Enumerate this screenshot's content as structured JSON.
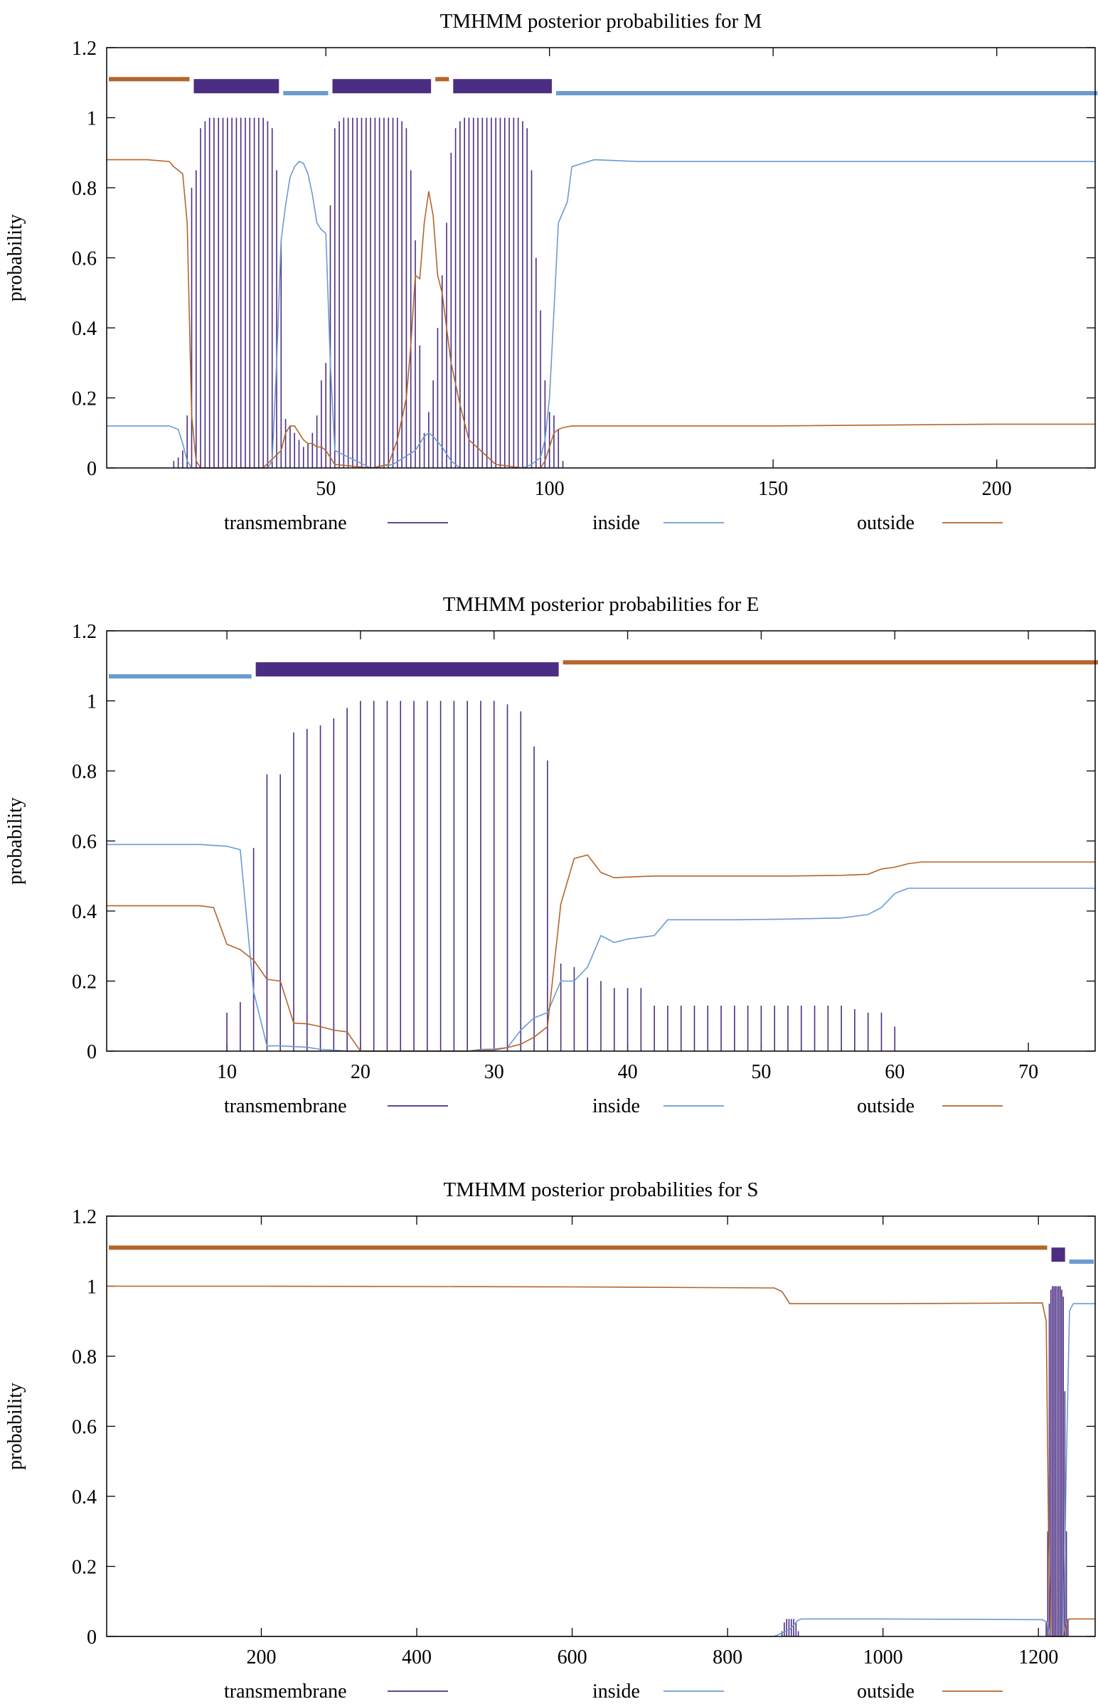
{
  "colors": {
    "transmembrane": "#4b2e83",
    "inside": "#6b9bd1",
    "outside": "#b5652a",
    "axis": "#000000"
  },
  "chart_data": [
    {
      "type": "line",
      "title": "TMHMM posterior probabilities for M",
      "xlabel": "",
      "ylabel": "probability",
      "xlim": [
        1,
        222
      ],
      "ylim": [
        0,
        1.2
      ],
      "xticks": [
        50,
        100,
        150,
        200
      ],
      "yticks": [
        0,
        0.2,
        0.4,
        0.6,
        0.8,
        1,
        1.2
      ],
      "legend": [
        "transmembrane",
        "inside",
        "outside"
      ],
      "legend_position": "bottom",
      "topology": [
        {
          "type": "outside",
          "start": 1,
          "end": 19
        },
        {
          "type": "transmembrane",
          "start": 20,
          "end": 39
        },
        {
          "type": "inside",
          "start": 40,
          "end": 50
        },
        {
          "type": "transmembrane",
          "start": 51,
          "end": 73
        },
        {
          "type": "outside",
          "start": 74,
          "end": 77
        },
        {
          "type": "transmembrane",
          "start": 78,
          "end": 100
        },
        {
          "type": "inside",
          "start": 101,
          "end": 222
        }
      ],
      "series": [
        {
          "name": "transmembrane",
          "style": "impulses",
          "x": [
            16,
            17,
            18,
            19,
            20,
            21,
            22,
            23,
            24,
            25,
            26,
            27,
            28,
            29,
            30,
            31,
            32,
            33,
            34,
            35,
            36,
            37,
            38,
            39,
            40,
            41,
            42,
            43,
            44,
            45,
            46,
            47,
            48,
            49,
            50,
            51,
            52,
            53,
            54,
            55,
            56,
            57,
            58,
            59,
            60,
            61,
            62,
            63,
            64,
            65,
            66,
            67,
            68,
            69,
            70,
            71,
            72,
            73,
            74,
            75,
            76,
            77,
            78,
            79,
            80,
            81,
            82,
            83,
            84,
            85,
            86,
            87,
            88,
            89,
            90,
            91,
            92,
            93,
            94,
            95,
            96,
            97,
            98,
            99,
            100,
            101,
            102,
            103
          ],
          "y": [
            0.02,
            0.03,
            0.05,
            0.15,
            0.8,
            0.85,
            0.97,
            0.99,
            1,
            1,
            1,
            1,
            1,
            1,
            1,
            1,
            1,
            1,
            1,
            1,
            1,
            0.99,
            0.97,
            0.85,
            0.65,
            0.14,
            0.12,
            0.1,
            0.08,
            0.06,
            0.07,
            0.1,
            0.15,
            0.25,
            0.3,
            0.75,
            0.97,
            0.99,
            1,
            1,
            1,
            1,
            1,
            1,
            1,
            1,
            1,
            1,
            1,
            1,
            1,
            0.99,
            0.97,
            0.85,
            0.65,
            0.35,
            0.1,
            0.16,
            0.25,
            0.4,
            0.55,
            0.7,
            0.9,
            0.97,
            0.99,
            1,
            1,
            1,
            1,
            1,
            1,
            1,
            1,
            1,
            1,
            1,
            1,
            1,
            0.99,
            0.97,
            0.85,
            0.6,
            0.45,
            0.25,
            0.16,
            0.15,
            0.11,
            0.02
          ]
        },
        {
          "name": "inside",
          "style": "line",
          "x": [
            1,
            10,
            15,
            17,
            18,
            19,
            20,
            21,
            22,
            36,
            37,
            38,
            39,
            40,
            41,
            42,
            43,
            44,
            45,
            46,
            47,
            48,
            49,
            50,
            51,
            52,
            60,
            65,
            70,
            72,
            73,
            74,
            76,
            78,
            80,
            88,
            94,
            96,
            98,
            99,
            100,
            101,
            102,
            103,
            104,
            105,
            110,
            120,
            150,
            200,
            222
          ],
          "y": [
            0.12,
            0.12,
            0.12,
            0.11,
            0.07,
            0.02,
            0,
            0,
            0,
            0,
            0,
            0.02,
            0.3,
            0.65,
            0.75,
            0.83,
            0.86,
            0.875,
            0.87,
            0.84,
            0.78,
            0.7,
            0.68,
            0.67,
            0.3,
            0.05,
            0,
            0.01,
            0.05,
            0.09,
            0.1,
            0.09,
            0.06,
            0.02,
            0,
            0,
            0,
            0.01,
            0.03,
            0.08,
            0.2,
            0.45,
            0.7,
            0.73,
            0.76,
            0.86,
            0.88,
            0.875,
            0.875,
            0.875,
            0.875
          ]
        },
        {
          "name": "outside",
          "style": "line",
          "x": [
            1,
            10,
            15,
            16,
            17,
            18,
            19,
            20,
            21,
            22,
            36,
            40,
            41,
            42,
            43,
            44,
            45,
            46,
            47,
            48,
            49,
            50,
            51,
            52,
            60,
            64,
            66,
            68,
            69,
            70,
            71,
            72,
            73,
            74,
            75,
            76,
            77,
            78,
            80,
            82,
            88,
            94,
            98,
            99,
            100,
            101,
            102,
            103,
            105,
            110,
            120,
            150,
            200,
            222
          ],
          "y": [
            0.88,
            0.88,
            0.875,
            0.86,
            0.85,
            0.84,
            0.7,
            0.15,
            0.02,
            0,
            0,
            0.05,
            0.1,
            0.12,
            0.12,
            0.1,
            0.08,
            0.07,
            0.07,
            0.06,
            0.06,
            0.05,
            0.03,
            0.01,
            0,
            0.01,
            0.08,
            0.2,
            0.35,
            0.55,
            0.54,
            0.7,
            0.79,
            0.72,
            0.55,
            0.5,
            0.4,
            0.3,
            0.18,
            0.08,
            0.01,
            0,
            0,
            0.02,
            0.06,
            0.1,
            0.11,
            0.115,
            0.12,
            0.12,
            0.12,
            0.12,
            0.125,
            0.125
          ]
        }
      ]
    },
    {
      "type": "line",
      "title": "TMHMM posterior probabilities for E",
      "xlabel": "",
      "ylabel": "probability",
      "xlim": [
        1,
        75
      ],
      "ylim": [
        0,
        1.2
      ],
      "xticks": [
        10,
        20,
        30,
        40,
        50,
        60,
        70
      ],
      "yticks": [
        0,
        0.2,
        0.4,
        0.6,
        0.8,
        1,
        1.2
      ],
      "legend": [
        "transmembrane",
        "inside",
        "outside"
      ],
      "legend_position": "bottom",
      "topology": [
        {
          "type": "inside",
          "start": 1,
          "end": 11
        },
        {
          "type": "transmembrane",
          "start": 12,
          "end": 34
        },
        {
          "type": "outside",
          "start": 35,
          "end": 75
        }
      ],
      "series": [
        {
          "name": "transmembrane",
          "style": "impulses",
          "x": [
            10,
            11,
            12,
            13,
            14,
            15,
            16,
            17,
            18,
            19,
            20,
            21,
            22,
            23,
            24,
            25,
            26,
            27,
            28,
            29,
            30,
            31,
            32,
            33,
            34,
            35,
            36,
            37,
            38,
            39,
            40,
            41,
            42,
            43,
            44,
            45,
            46,
            47,
            48,
            49,
            50,
            51,
            52,
            53,
            54,
            55,
            56,
            57,
            58,
            59,
            60
          ],
          "y": [
            0.11,
            0.14,
            0.58,
            0.79,
            0.79,
            0.91,
            0.92,
            0.93,
            0.95,
            0.98,
            1,
            1,
            1,
            1,
            1,
            1,
            1,
            1,
            1,
            1,
            1,
            0.99,
            0.97,
            0.87,
            0.83,
            0.25,
            0.24,
            0.21,
            0.2,
            0.18,
            0.18,
            0.18,
            0.13,
            0.13,
            0.13,
            0.13,
            0.13,
            0.13,
            0.13,
            0.13,
            0.13,
            0.13,
            0.13,
            0.13,
            0.13,
            0.13,
            0.13,
            0.12,
            0.11,
            0.11,
            0.07
          ]
        },
        {
          "name": "inside",
          "style": "line",
          "x": [
            1,
            8,
            10,
            11,
            12,
            13,
            14,
            15,
            16,
            17,
            18,
            19,
            20,
            28,
            29,
            30,
            31,
            32,
            33,
            34,
            35,
            36,
            37,
            38,
            39,
            40,
            42,
            43,
            48,
            52,
            56,
            58,
            59,
            60,
            61,
            75
          ],
          "y": [
            0.59,
            0.59,
            0.585,
            0.575,
            0.17,
            0.015,
            0.015,
            0.013,
            0.011,
            0.005,
            0.003,
            0,
            0,
            0,
            0.005,
            0.006,
            0.01,
            0.06,
            0.095,
            0.11,
            0.2,
            0.2,
            0.24,
            0.33,
            0.31,
            0.32,
            0.33,
            0.375,
            0.375,
            0.377,
            0.38,
            0.39,
            0.41,
            0.45,
            0.465,
            0.465
          ]
        },
        {
          "name": "outside",
          "style": "line",
          "x": [
            1,
            8,
            9,
            10,
            11,
            12,
            13,
            14,
            15,
            16,
            17,
            18,
            19,
            20,
            28,
            29,
            30,
            31,
            32,
            33,
            34,
            35,
            36,
            37,
            38,
            39,
            40,
            42,
            48,
            52,
            56,
            58,
            59,
            60,
            61,
            62,
            75
          ],
          "y": [
            0.415,
            0.415,
            0.41,
            0.305,
            0.29,
            0.26,
            0.205,
            0.2,
            0.08,
            0.078,
            0.07,
            0.06,
            0.055,
            0,
            0,
            0.002,
            0.003,
            0.01,
            0.02,
            0.04,
            0.07,
            0.42,
            0.55,
            0.56,
            0.51,
            0.495,
            0.497,
            0.5,
            0.5,
            0.5,
            0.502,
            0.505,
            0.52,
            0.525,
            0.535,
            0.54,
            0.54
          ]
        }
      ]
    },
    {
      "type": "line",
      "title": "TMHMM posterior probabilities for S",
      "xlabel": "",
      "ylabel": "probability",
      "xlim": [
        1,
        1273
      ],
      "ylim": [
        0,
        1.2
      ],
      "xticks": [
        200,
        400,
        600,
        800,
        1000,
        1200
      ],
      "yticks": [
        0,
        0.2,
        0.4,
        0.6,
        0.8,
        1,
        1.2
      ],
      "legend": [
        "transmembrane",
        "inside",
        "outside"
      ],
      "legend_position": "bottom",
      "topology": [
        {
          "type": "outside",
          "start": 1,
          "end": 1213
        },
        {
          "type": "transmembrane",
          "start": 1214,
          "end": 1236
        },
        {
          "type": "inside",
          "start": 1237,
          "end": 1273
        }
      ],
      "series": [
        {
          "name": "transmembrane",
          "style": "impulses",
          "x": [
            870,
            873,
            876,
            879,
            882,
            885,
            888,
            891,
            1210,
            1212,
            1214,
            1216,
            1218,
            1220,
            1222,
            1224,
            1226,
            1228,
            1230,
            1232,
            1234,
            1236,
            1238
          ],
          "y": [
            0.015,
            0.04,
            0.05,
            0.05,
            0.05,
            0.05,
            0.04,
            0.015,
            0.04,
            0.3,
            0.95,
            0.99,
            1,
            1,
            1,
            1,
            1,
            1,
            0.99,
            0.97,
            0.7,
            0.3,
            0.05
          ]
        },
        {
          "name": "inside",
          "style": "line",
          "x": [
            1,
            860,
            880,
            890,
            895,
            1000,
            1205,
            1212,
            1215,
            1232,
            1236,
            1240,
            1245,
            1273
          ],
          "y": [
            0,
            0,
            0.02,
            0.045,
            0.05,
            0.05,
            0.048,
            0.04,
            0,
            0,
            0.5,
            0.93,
            0.95,
            0.95
          ]
        },
        {
          "name": "outside",
          "style": "line",
          "x": [
            1,
            200,
            600,
            860,
            870,
            880,
            1000,
            1205,
            1210,
            1213,
            1216,
            1232,
            1236,
            1240,
            1273
          ],
          "y": [
            1,
            1,
            0.998,
            0.995,
            0.985,
            0.95,
            0.95,
            0.952,
            0.9,
            0.3,
            0,
            0,
            0.04,
            0.05,
            0.05
          ]
        }
      ]
    }
  ]
}
